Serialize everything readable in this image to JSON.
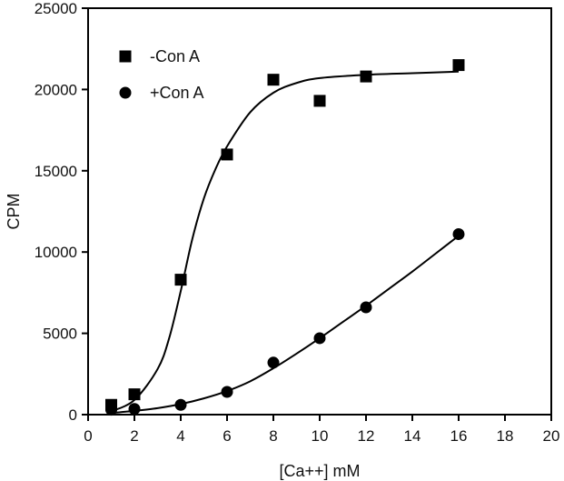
{
  "chart_data": {
    "type": "scatter",
    "xlabel": "[Ca++] mM",
    "ylabel": "CPM",
    "xlim": [
      0,
      20
    ],
    "ylim": [
      0,
      25000
    ],
    "x_ticks": [
      0,
      2,
      4,
      6,
      8,
      10,
      12,
      14,
      16,
      18,
      20
    ],
    "y_ticks": [
      0,
      5000,
      10000,
      15000,
      20000,
      25000
    ],
    "grid": false,
    "legend_position": "top-left",
    "series": [
      {
        "name": "-Con A",
        "marker": "square",
        "color": "#000000",
        "points": [
          {
            "x": 1,
            "y": 600
          },
          {
            "x": 2,
            "y": 1250
          },
          {
            "x": 4,
            "y": 8300
          },
          {
            "x": 6,
            "y": 16000
          },
          {
            "x": 8,
            "y": 20600
          },
          {
            "x": 10,
            "y": 19300
          },
          {
            "x": 12,
            "y": 20800
          },
          {
            "x": 16,
            "y": 21500
          }
        ],
        "fit_curve": [
          {
            "x": 1,
            "y": 200
          },
          {
            "x": 2,
            "y": 900
          },
          {
            "x": 3,
            "y": 2800
          },
          {
            "x": 3.5,
            "y": 4700
          },
          {
            "x": 4,
            "y": 7600
          },
          {
            "x": 4.5,
            "y": 10800
          },
          {
            "x": 5,
            "y": 13300
          },
          {
            "x": 5.5,
            "y": 15100
          },
          {
            "x": 6,
            "y": 16500
          },
          {
            "x": 7,
            "y": 18600
          },
          {
            "x": 8,
            "y": 19800
          },
          {
            "x": 9,
            "y": 20400
          },
          {
            "x": 10,
            "y": 20700
          },
          {
            "x": 12,
            "y": 20900
          },
          {
            "x": 14,
            "y": 21000
          },
          {
            "x": 16,
            "y": 21100
          }
        ]
      },
      {
        "name": "+Con A",
        "marker": "circle",
        "color": "#000000",
        "points": [
          {
            "x": 1,
            "y": 300
          },
          {
            "x": 2,
            "y": 350
          },
          {
            "x": 4,
            "y": 600
          },
          {
            "x": 6,
            "y": 1400
          },
          {
            "x": 8,
            "y": 3200
          },
          {
            "x": 10,
            "y": 4700
          },
          {
            "x": 12,
            "y": 6600
          },
          {
            "x": 16,
            "y": 11100
          }
        ],
        "fit_curve": [
          {
            "x": 1,
            "y": 100
          },
          {
            "x": 2,
            "y": 230
          },
          {
            "x": 3,
            "y": 400
          },
          {
            "x": 4,
            "y": 650
          },
          {
            "x": 5,
            "y": 1000
          },
          {
            "x": 6,
            "y": 1450
          },
          {
            "x": 7,
            "y": 2050
          },
          {
            "x": 8,
            "y": 2850
          },
          {
            "x": 9,
            "y": 3750
          },
          {
            "x": 10,
            "y": 4700
          },
          {
            "x": 11,
            "y": 5700
          },
          {
            "x": 12,
            "y": 6700
          },
          {
            "x": 13,
            "y": 7750
          },
          {
            "x": 14,
            "y": 8800
          },
          {
            "x": 15,
            "y": 9900
          },
          {
            "x": 16,
            "y": 11000
          }
        ]
      }
    ]
  }
}
